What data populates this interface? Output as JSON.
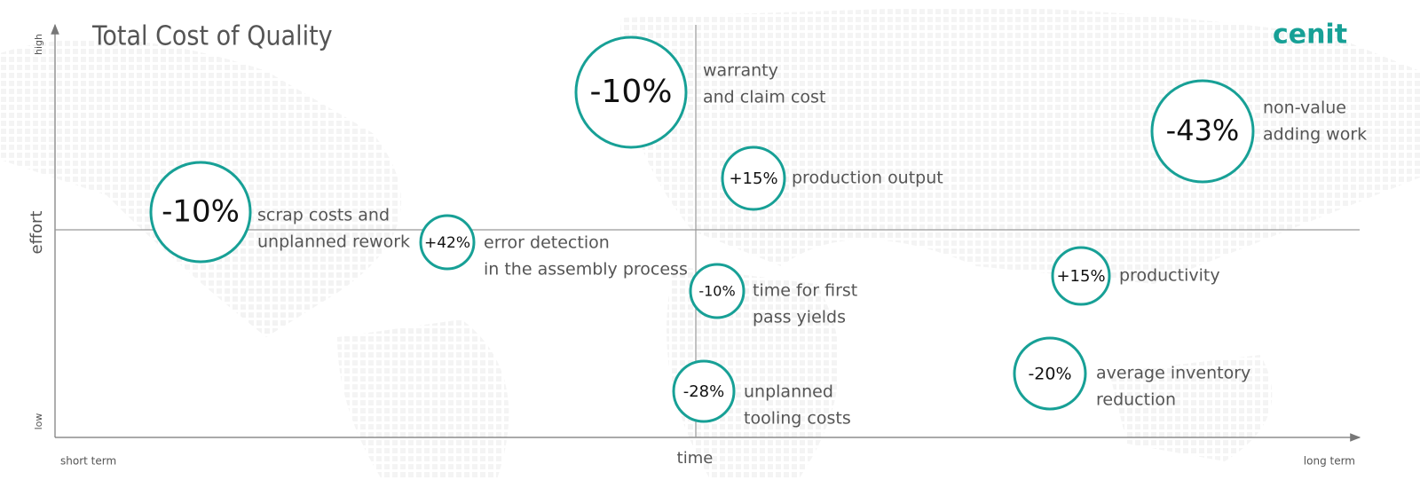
{
  "header": {
    "title": "Total Cost of Quality",
    "logo": "cenit"
  },
  "axes": {
    "y_label": "effort",
    "y_high": "high",
    "y_low": "low",
    "x_label": "time",
    "x_start": "short term",
    "x_end": "long term"
  },
  "bubbles": [
    {
      "value": "-10%",
      "label": [
        "warranty",
        "and claim cost"
      ]
    },
    {
      "value": "-43%",
      "label": [
        "non-value",
        "adding work"
      ]
    },
    {
      "value": "+15%",
      "label": [
        "production output"
      ]
    },
    {
      "value": "-10%",
      "label": [
        "scrap costs and",
        "unplanned rework"
      ]
    },
    {
      "value": "+42%",
      "label": [
        "error detection",
        "in the assembly process"
      ]
    },
    {
      "value": "-10%",
      "label": [
        "time for first",
        "pass yields"
      ]
    },
    {
      "value": "+15%",
      "label": [
        "productivity"
      ]
    },
    {
      "value": "-20%",
      "label": [
        "average inventory",
        "reduction"
      ]
    },
    {
      "value": "-28%",
      "label": [
        "unplanned",
        "tooling costs"
      ]
    }
  ]
}
